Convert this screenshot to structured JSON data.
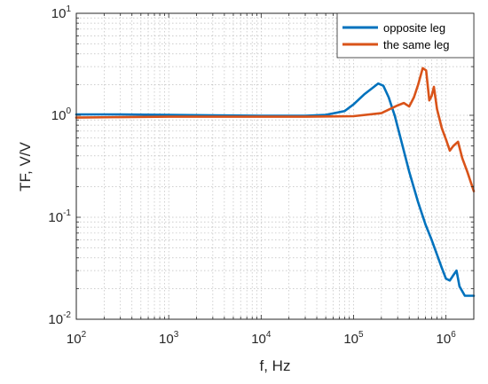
{
  "chart_data": {
    "type": "line",
    "xscale": "log",
    "yscale": "log",
    "xlim": [
      100,
      2000000
    ],
    "ylim": [
      0.01,
      10
    ],
    "xlabel": "f, Hz",
    "ylabel": "TF, V/V",
    "grid": true,
    "legend_position": "top-right",
    "x_ticks": [
      {
        "base": "10",
        "exp": "2",
        "value": 100
      },
      {
        "base": "10",
        "exp": "3",
        "value": 1000
      },
      {
        "base": "10",
        "exp": "4",
        "value": 10000
      },
      {
        "base": "10",
        "exp": "5",
        "value": 100000
      },
      {
        "base": "10",
        "exp": "6",
        "value": 1000000
      }
    ],
    "y_ticks": [
      {
        "base": "10",
        "exp": "-2",
        "value": 0.01
      },
      {
        "base": "10",
        "exp": "-1",
        "value": 0.1
      },
      {
        "base": "10",
        "exp": "0",
        "value": 1
      },
      {
        "base": "10",
        "exp": "1",
        "value": 10
      }
    ],
    "series": [
      {
        "name": "opposite leg",
        "color": "#0072BD",
        "x": [
          100,
          300,
          1000,
          3000,
          10000,
          30000,
          50000,
          80000,
          100000,
          130000,
          160000,
          185000,
          210000,
          240000,
          280000,
          330000,
          400000,
          500000,
          600000,
          700000,
          800000,
          900000,
          1000000,
          1100000,
          1200000,
          1300000,
          1400000,
          1600000,
          1800000,
          2000000
        ],
        "y": [
          1.02,
          1.02,
          1.01,
          1.0,
          0.99,
          0.99,
          1.01,
          1.1,
          1.28,
          1.6,
          1.85,
          2.05,
          1.95,
          1.5,
          0.98,
          0.55,
          0.28,
          0.14,
          0.085,
          0.06,
          0.043,
          0.032,
          0.025,
          0.024,
          0.027,
          0.03,
          0.021,
          0.017,
          0.017,
          0.017
        ]
      },
      {
        "name": "the same leg",
        "color": "#D95319",
        "x": [
          100,
          300,
          1000,
          3000,
          10000,
          30000,
          100000,
          200000,
          300000,
          350000,
          400000,
          450000,
          500000,
          560000,
          610000,
          660000,
          700000,
          740000,
          800000,
          900000,
          1000000,
          1100000,
          1200000,
          1350000,
          1500000,
          1700000,
          2000000
        ],
        "y": [
          0.95,
          0.96,
          0.97,
          0.97,
          0.97,
          0.97,
          0.98,
          1.05,
          1.25,
          1.32,
          1.22,
          1.5,
          2.0,
          2.9,
          2.75,
          1.4,
          1.55,
          1.9,
          1.15,
          0.75,
          0.58,
          0.45,
          0.5,
          0.55,
          0.38,
          0.28,
          0.18
        ]
      }
    ]
  }
}
